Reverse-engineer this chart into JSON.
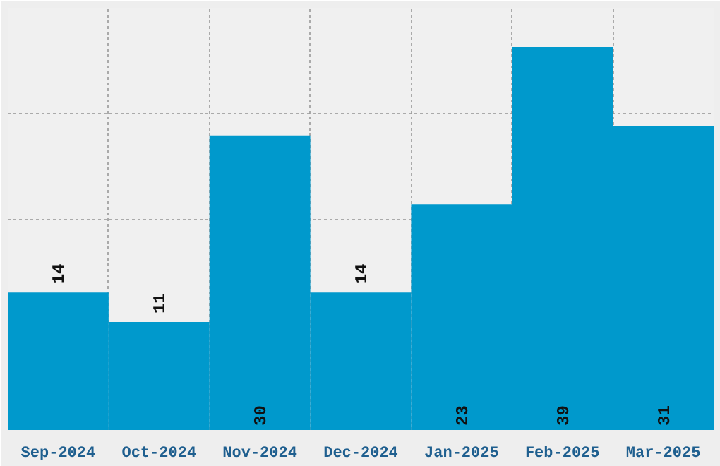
{
  "chart_data": {
    "type": "bar",
    "categories": [
      "Sep-2024",
      "Oct-2024",
      "Nov-2024",
      "Dec-2024",
      "Jan-2025",
      "Feb-2025",
      "Mar-2025"
    ],
    "values": [
      14,
      11,
      30,
      14,
      23,
      39,
      31
    ],
    "color": "#0099cc",
    "ylim": [
      0,
      43
    ],
    "yticks": [
      {
        "value": 10.75,
        "label": null
      },
      {
        "value": 21.5,
        "label": null
      },
      {
        "value": 32.25,
        "label": null
      }
    ],
    "tick_labels": "x",
    "grid": true,
    "data_labels": true
  }
}
